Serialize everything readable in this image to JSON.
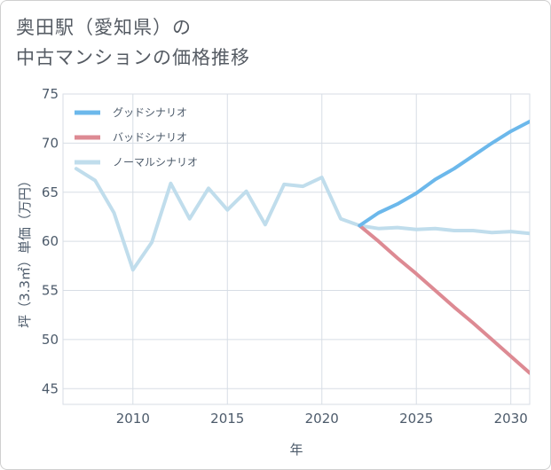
{
  "title_lines": [
    "奥田駅（愛知県）の",
    "中古マンションの価格推移"
  ],
  "colors": {
    "good": "#6cb8eb",
    "bad": "#dd8a93",
    "normal": "#c0ddec",
    "grid": "#d7dde5",
    "axis_text": "#4d5b6b"
  },
  "chart_data": {
    "type": "line",
    "title": "奥田駅（愛知県）の中古マンションの価格推移",
    "xlabel": "年",
    "ylabel": "坪（3.3㎡）単価（万円）",
    "xlim": [
      2006.3,
      2031
    ],
    "ylim": [
      43.4,
      75
    ],
    "xticks": [
      2010,
      2015,
      2020,
      2025,
      2030
    ],
    "yticks": [
      45,
      50,
      55,
      60,
      65,
      70,
      75
    ],
    "legend_position": "top-left",
    "series": [
      {
        "key": "good",
        "name": "グッドシナリオ",
        "x": [
          2022,
          2023,
          2024,
          2025,
          2026,
          2027,
          2028,
          2029,
          2030,
          2031
        ],
        "y": [
          61.6,
          62.9,
          63.8,
          64.9,
          66.3,
          67.4,
          68.7,
          70.0,
          71.2,
          72.2
        ]
      },
      {
        "key": "bad",
        "name": "バッドシナリオ",
        "x": [
          2022,
          2023,
          2024,
          2025,
          2026,
          2027,
          2028,
          2029,
          2030,
          2031
        ],
        "y": [
          61.6,
          60.0,
          58.3,
          56.7,
          55.0,
          53.3,
          51.7,
          50.0,
          48.3,
          46.6
        ]
      },
      {
        "key": "normal",
        "name": "ノーマルシナリオ",
        "x": [
          2007,
          2008,
          2009,
          2010,
          2011,
          2012,
          2013,
          2014,
          2015,
          2016,
          2017,
          2018,
          2019,
          2020,
          2021,
          2022,
          2023,
          2024,
          2025,
          2026,
          2027,
          2028,
          2029,
          2030,
          2031
        ],
        "y": [
          67.4,
          66.2,
          62.9,
          57.1,
          59.9,
          65.9,
          62.3,
          65.4,
          63.2,
          65.1,
          61.7,
          65.8,
          65.6,
          66.5,
          62.3,
          61.6,
          61.3,
          61.4,
          61.2,
          61.3,
          61.1,
          61.1,
          60.9,
          61.0,
          60.8
        ]
      }
    ]
  }
}
